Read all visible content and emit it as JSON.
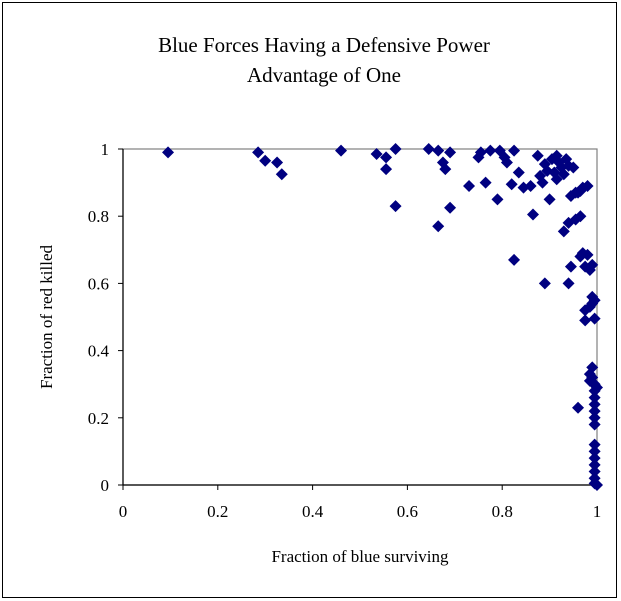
{
  "chart_data": {
    "type": "scatter",
    "title_lines": [
      "Blue Forces Having a Defensive Power",
      "Advantage of One"
    ],
    "xlabel": "Fraction of blue surviving",
    "ylabel": "Fraction of red killed",
    "xlim": [
      0,
      1
    ],
    "ylim": [
      0,
      1
    ],
    "x_ticks": [
      "0",
      "0.2",
      "0.4",
      "0.6",
      "0.8",
      "1"
    ],
    "y_ticks": [
      "0",
      "0.2",
      "0.4",
      "0.6",
      "0.8",
      "1"
    ],
    "grid": false,
    "legend": "none",
    "marker": "diamond",
    "marker_color": "#000080",
    "points": [
      [
        0.095,
        0.99
      ],
      [
        0.285,
        0.99
      ],
      [
        0.3,
        0.965
      ],
      [
        0.325,
        0.96
      ],
      [
        0.335,
        0.925
      ],
      [
        0.46,
        0.995
      ],
      [
        0.535,
        0.985
      ],
      [
        0.555,
        0.975
      ],
      [
        0.555,
        0.94
      ],
      [
        0.575,
        1.0
      ],
      [
        0.575,
        0.83
      ],
      [
        0.645,
        1.0
      ],
      [
        0.665,
        0.995
      ],
      [
        0.665,
        0.77
      ],
      [
        0.675,
        0.96
      ],
      [
        0.68,
        0.94
      ],
      [
        0.69,
        0.99
      ],
      [
        0.69,
        0.825
      ],
      [
        0.73,
        0.89
      ],
      [
        0.75,
        0.975
      ],
      [
        0.755,
        0.99
      ],
      [
        0.765,
        0.9
      ],
      [
        0.775,
        0.995
      ],
      [
        0.79,
        0.85
      ],
      [
        0.795,
        0.995
      ],
      [
        0.805,
        0.975
      ],
      [
        0.81,
        0.96
      ],
      [
        0.82,
        0.895
      ],
      [
        0.825,
        0.995
      ],
      [
        0.825,
        0.67
      ],
      [
        0.835,
        0.93
      ],
      [
        0.845,
        0.885
      ],
      [
        0.86,
        0.89
      ],
      [
        0.865,
        0.805
      ],
      [
        0.875,
        0.98
      ],
      [
        0.88,
        0.92
      ],
      [
        0.885,
        0.9
      ],
      [
        0.89,
        0.955
      ],
      [
        0.89,
        0.6
      ],
      [
        0.895,
        0.935
      ],
      [
        0.9,
        0.85
      ],
      [
        0.905,
        0.97
      ],
      [
        0.91,
        0.93
      ],
      [
        0.915,
        0.98
      ],
      [
        0.915,
        0.91
      ],
      [
        0.92,
        0.96
      ],
      [
        0.925,
        0.945
      ],
      [
        0.93,
        0.925
      ],
      [
        0.93,
        0.755
      ],
      [
        0.935,
        0.97
      ],
      [
        0.94,
        0.95
      ],
      [
        0.94,
        0.78
      ],
      [
        0.94,
        0.6
      ],
      [
        0.945,
        0.86
      ],
      [
        0.945,
        0.65
      ],
      [
        0.95,
        0.945
      ],
      [
        0.955,
        0.87
      ],
      [
        0.955,
        0.79
      ],
      [
        0.96,
        0.87
      ],
      [
        0.96,
        0.23
      ],
      [
        0.965,
        0.875
      ],
      [
        0.965,
        0.8
      ],
      [
        0.965,
        0.68
      ],
      [
        0.97,
        0.885
      ],
      [
        0.97,
        0.69
      ],
      [
        0.975,
        0.65
      ],
      [
        0.975,
        0.52
      ],
      [
        0.975,
        0.49
      ],
      [
        0.98,
        0.89
      ],
      [
        0.98,
        0.685
      ],
      [
        0.985,
        0.64
      ],
      [
        0.985,
        0.53
      ],
      [
        0.985,
        0.33
      ],
      [
        0.985,
        0.31
      ],
      [
        0.99,
        0.655
      ],
      [
        0.99,
        0.56
      ],
      [
        0.99,
        0.54
      ],
      [
        0.99,
        0.35
      ],
      [
        0.99,
        0.32
      ],
      [
        0.99,
        0.305
      ],
      [
        0.995,
        0.55
      ],
      [
        0.995,
        0.495
      ],
      [
        0.995,
        0.3
      ],
      [
        0.995,
        0.28
      ],
      [
        0.995,
        0.26
      ],
      [
        0.995,
        0.24
      ],
      [
        0.995,
        0.22
      ],
      [
        0.995,
        0.2
      ],
      [
        0.995,
        0.18
      ],
      [
        0.995,
        0.12
      ],
      [
        0.995,
        0.1
      ],
      [
        0.995,
        0.08
      ],
      [
        0.995,
        0.06
      ],
      [
        0.995,
        0.04
      ],
      [
        0.995,
        0.02
      ],
      [
        0.995,
        0.005
      ],
      [
        1.0,
        0.29
      ],
      [
        1.0,
        0.0
      ]
    ]
  }
}
